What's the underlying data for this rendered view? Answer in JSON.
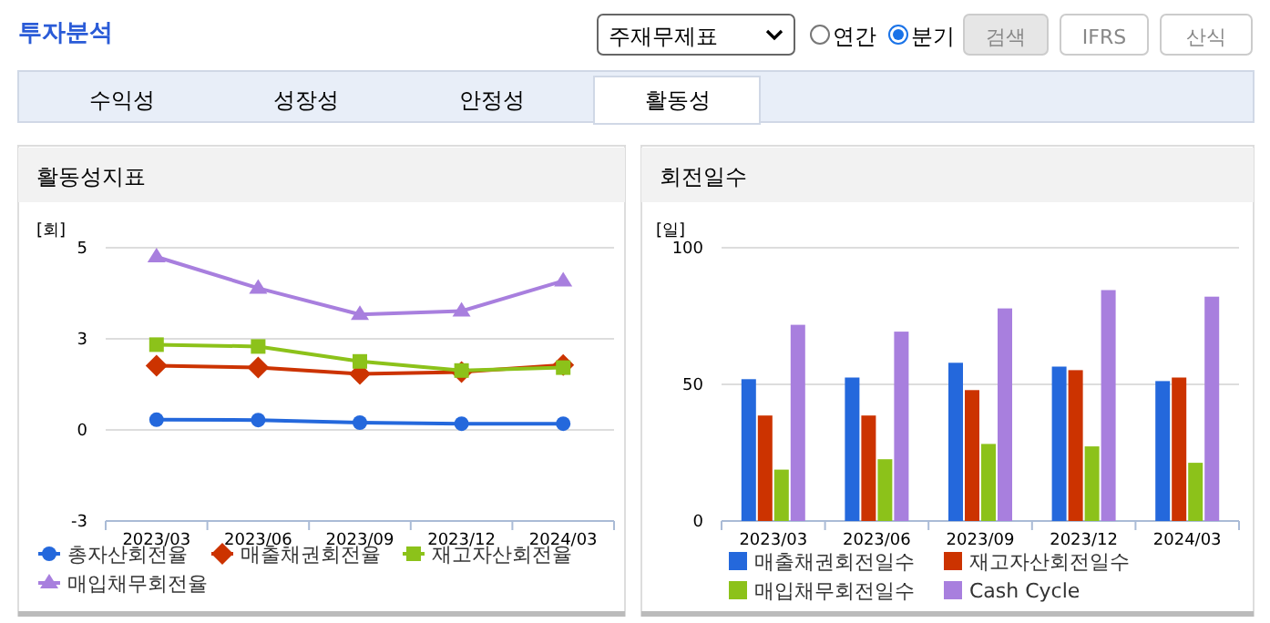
{
  "chart_data": [
    {
      "type": "other",
      "title": "투자분석",
      "annotations": [
        "주재무제표",
        "연간",
        "분기",
        "검색",
        "IFRS",
        "산식",
        "수익성",
        "성장성",
        "안정성",
        "활동성"
      ]
    },
    {
      "type": "line",
      "title": "활동성지표",
      "ylabel": "[회]",
      "categories": [
        "2023/03",
        "2023/06",
        "2023/09",
        "2023/12",
        "2024/03"
      ],
      "ylim": [
        -2.5,
        5
      ],
      "yticks": [
        {
          "value": -2.5,
          "label": "-3"
        },
        0,
        {
          "value": 2.5,
          "label": "3"
        },
        5
      ],
      "grid": "y",
      "legend": "bottom",
      "line_style": "solid",
      "series": [
        {
          "name": "총자산회전율",
          "color": "#2468dc",
          "marker": "circle",
          "values": [
            0.28,
            0.27,
            0.2,
            0.17,
            0.17
          ]
        },
        {
          "name": "매출채권회전율",
          "color": "#cc3300",
          "marker": "diamond",
          "values": [
            1.76,
            1.71,
            1.54,
            1.59,
            1.78
          ]
        },
        {
          "name": "재고자산회전율",
          "color": "#8cc21a",
          "marker": "square",
          "values": [
            2.34,
            2.29,
            1.88,
            1.63,
            1.71
          ]
        },
        {
          "name": "매입채무회전율",
          "color": "#a87fde",
          "marker": "triangle",
          "values": [
            4.75,
            3.89,
            3.17,
            3.26,
            4.09
          ]
        }
      ]
    },
    {
      "type": "bar",
      "title": "회전일수",
      "ylabel": "[일]",
      "categories": [
        "2023/03",
        "2023/06",
        "2023/09",
        "2023/12",
        "2024/03"
      ],
      "ylim": [
        0,
        100
      ],
      "yticks": [
        0,
        50,
        100
      ],
      "grid": "y",
      "legend": "bottom",
      "series": [
        {
          "name": "매출채권회전일수",
          "color": "#2468dc",
          "values": [
            51.9,
            52.5,
            57.9,
            56.5,
            51.2
          ]
        },
        {
          "name": "재고자산회전일수",
          "color": "#cc3300",
          "values": [
            38.6,
            38.6,
            47.9,
            55.2,
            52.5
          ]
        },
        {
          "name": "매입채무회전일수",
          "color": "#8cc21a",
          "values": [
            18.8,
            22.6,
            28.2,
            27.3,
            21.3
          ]
        },
        {
          "name": "Cash Cycle",
          "color": "#a87fde",
          "values": [
            71.8,
            69.3,
            77.8,
            84.5,
            82.1
          ]
        }
      ]
    }
  ]
}
